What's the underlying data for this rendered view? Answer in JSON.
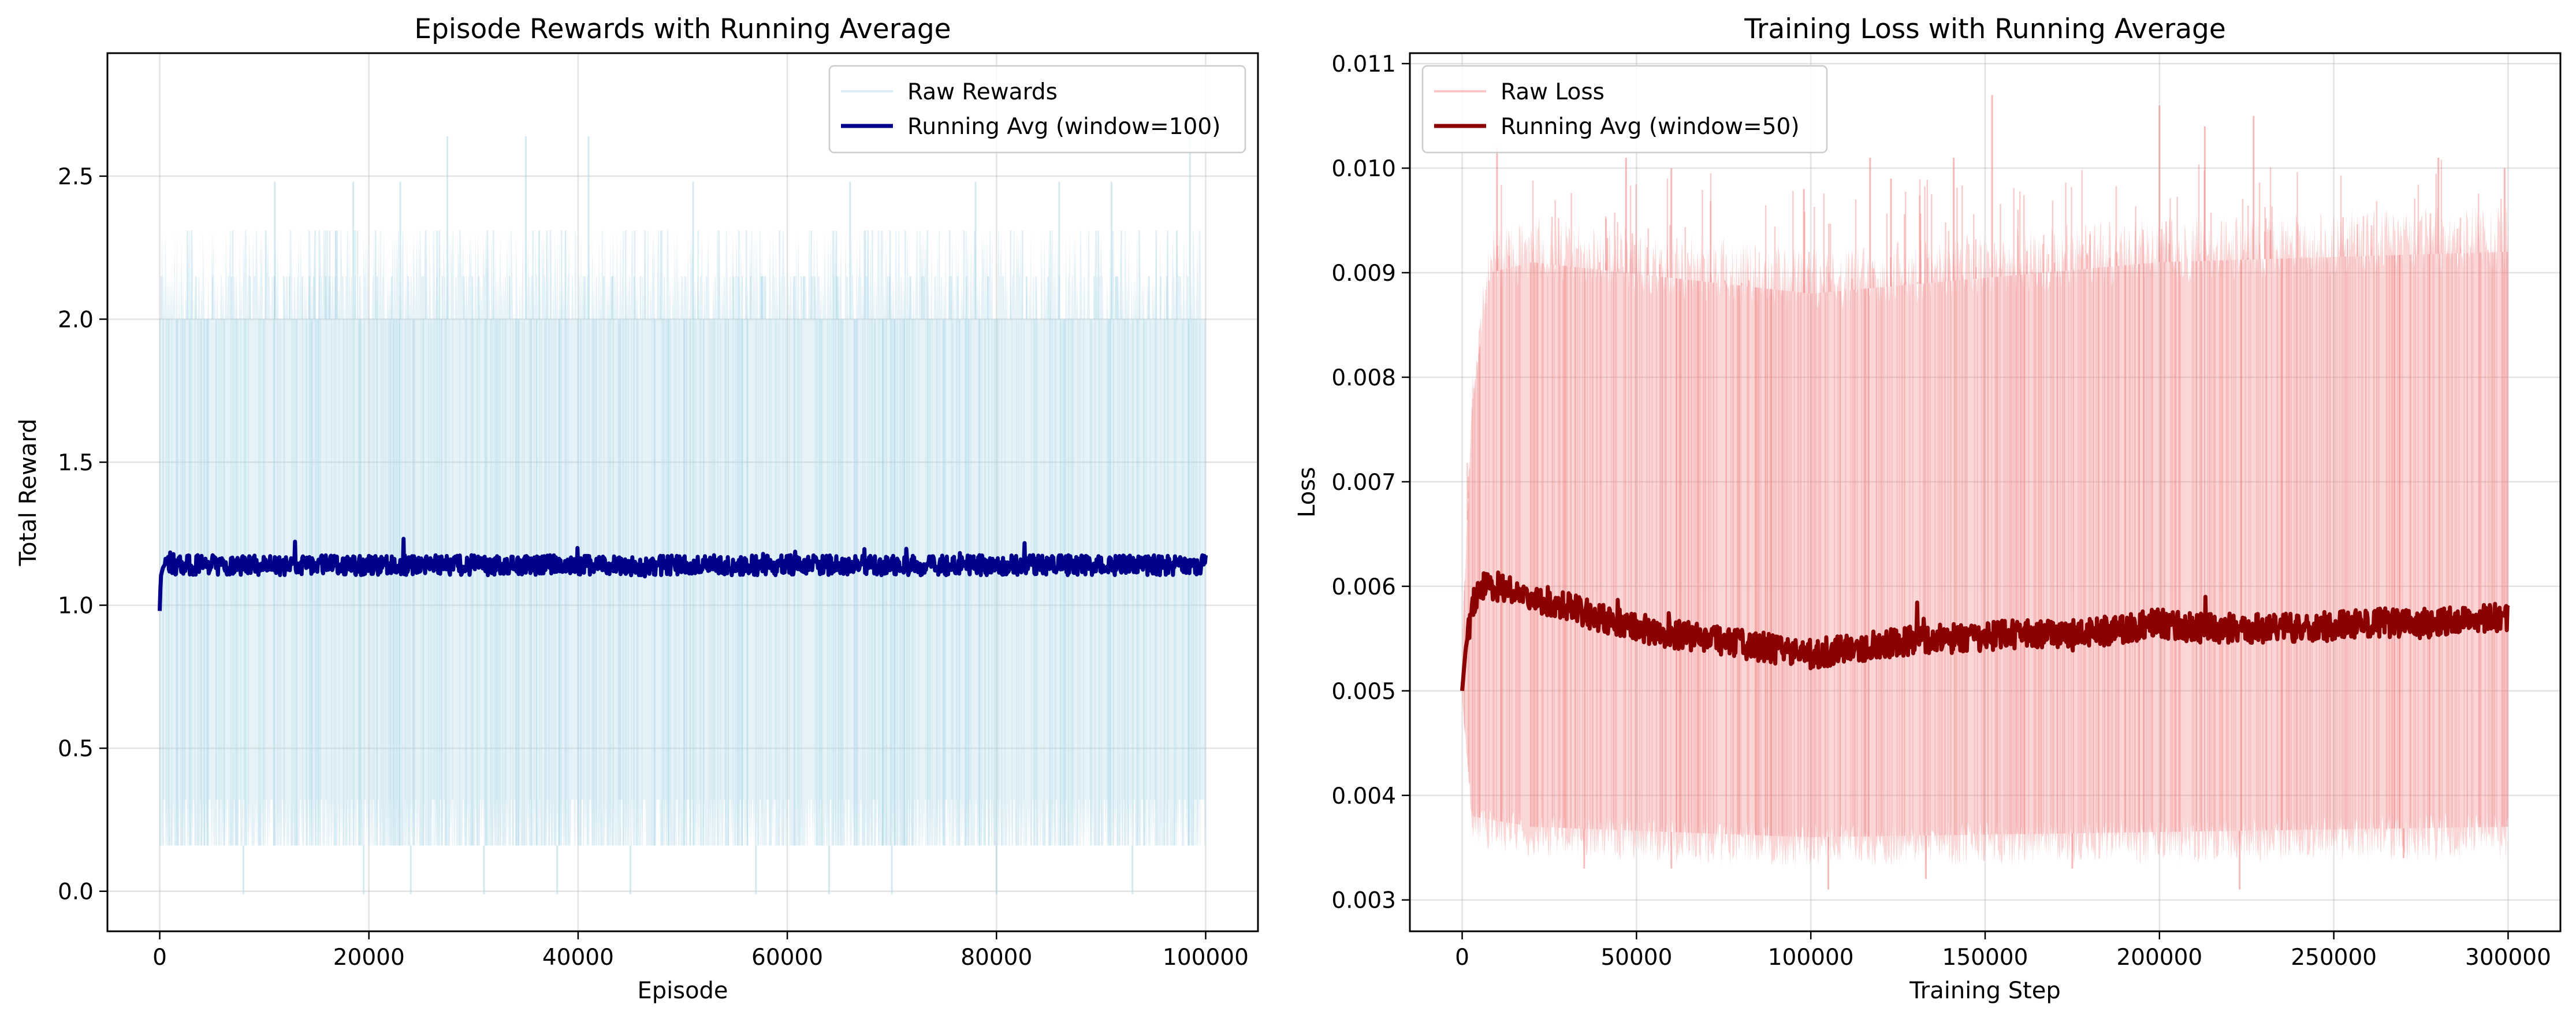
{
  "chart_data": [
    {
      "type": "line",
      "title": "Episode Rewards with Running Average",
      "xlabel": "Episode",
      "ylabel": "Total Reward",
      "xlim": [
        -5000,
        105000
      ],
      "ylim": [
        -0.14,
        2.93
      ],
      "xticks": [
        0,
        20000,
        40000,
        60000,
        80000,
        100000
      ],
      "xtick_labels": [
        "0",
        "20000",
        "40000",
        "60000",
        "80000",
        "100000"
      ],
      "yticks": [
        0.0,
        0.5,
        1.0,
        1.5,
        2.0,
        2.5
      ],
      "ytick_labels": [
        "0.0",
        "0.5",
        "1.0",
        "1.5",
        "2.0",
        "2.5"
      ],
      "grid": true,
      "legend": "top-right",
      "series": [
        {
          "name": "Raw Rewards",
          "color": "#add8e6",
          "style": "raw-band",
          "x": [
            0,
            100000
          ],
          "band_low": 0.16,
          "band_high": 2.0,
          "min": -0.01,
          "max": 2.64,
          "common_values": [
            0.16,
            0.32,
            2.0,
            2.15,
            2.31
          ],
          "spikes": [
            {
              "x": 11000,
              "y": 2.48
            },
            {
              "x": 18500,
              "y": 2.48
            },
            {
              "x": 23000,
              "y": 2.48
            },
            {
              "x": 27500,
              "y": 2.64
            },
            {
              "x": 35000,
              "y": 2.64
            },
            {
              "x": 41000,
              "y": 2.64
            },
            {
              "x": 51000,
              "y": 2.48
            },
            {
              "x": 66000,
              "y": 2.48
            },
            {
              "x": 78000,
              "y": 2.48
            },
            {
              "x": 86000,
              "y": 2.48
            },
            {
              "x": 91000,
              "y": 2.48
            },
            {
              "x": 98500,
              "y": 2.64
            },
            {
              "x": 8000,
              "y": -0.01
            },
            {
              "x": 19500,
              "y": -0.01
            },
            {
              "x": 24000,
              "y": -0.01
            },
            {
              "x": 31000,
              "y": -0.01
            },
            {
              "x": 38000,
              "y": -0.01
            },
            {
              "x": 45000,
              "y": -0.01
            },
            {
              "x": 57000,
              "y": -0.01
            },
            {
              "x": 64000,
              "y": -0.01
            },
            {
              "x": 70000,
              "y": -0.01
            },
            {
              "x": 80000,
              "y": -0.01
            },
            {
              "x": 93000,
              "y": -0.01
            }
          ]
        },
        {
          "name": "Running Avg (window=100)",
          "color": "#00008b",
          "style": "line",
          "x": [
            0,
            100,
            300,
            600,
            1000,
            1500,
            2000,
            5000,
            10000,
            15000,
            20000,
            25000,
            30000,
            35000,
            40000,
            45000,
            50000,
            55000,
            60000,
            65000,
            70000,
            75000,
            80000,
            85000,
            90000,
            95000,
            100000
          ],
          "y": [
            0.98,
            1.1,
            1.13,
            1.15,
            1.15,
            1.14,
            1.14,
            1.14,
            1.14,
            1.14,
            1.14,
            1.14,
            1.14,
            1.14,
            1.14,
            1.14,
            1.14,
            1.14,
            1.14,
            1.14,
            1.14,
            1.14,
            1.14,
            1.14,
            1.14,
            1.14,
            1.14
          ],
          "noise": 0.035,
          "min": 0.97,
          "max": 1.26
        }
      ]
    },
    {
      "type": "line",
      "title": "Training Loss with Running Average",
      "xlabel": "Training Step",
      "ylabel": "Loss",
      "xlim": [
        -15000,
        315000
      ],
      "ylim": [
        0.0027,
        0.0111
      ],
      "xticks": [
        0,
        50000,
        100000,
        150000,
        200000,
        250000,
        300000
      ],
      "xtick_labels": [
        "0",
        "50000",
        "100000",
        "150000",
        "200000",
        "250000",
        "300000"
      ],
      "yticks": [
        0.003,
        0.004,
        0.005,
        0.006,
        0.007,
        0.008,
        0.009,
        0.01,
        0.011
      ],
      "ytick_labels": [
        "0.003",
        "0.004",
        "0.005",
        "0.006",
        "0.007",
        "0.008",
        "0.009",
        "0.010",
        "0.011"
      ],
      "grid": true,
      "legend": "top-left",
      "series": [
        {
          "name": "Raw Loss",
          "color": "#f08080",
          "style": "raw-band",
          "x": [
            0,
            300000
          ],
          "band_low_pts": [
            [
              0,
              0.0049
            ],
            [
              3000,
              0.0038
            ],
            [
              20000,
              0.0037
            ],
            [
              100000,
              0.0036
            ],
            [
              300000,
              0.0037
            ]
          ],
          "band_high_pts": [
            [
              0,
              0.0055
            ],
            [
              3000,
              0.0078
            ],
            [
              8000,
              0.009
            ],
            [
              20000,
              0.0091
            ],
            [
              100000,
              0.0088
            ],
            [
              200000,
              0.0091
            ],
            [
              300000,
              0.0092
            ]
          ],
          "min": 0.0031,
          "max": 0.0107,
          "spikes": [
            {
              "x": 10000,
              "y": 0.0102
            },
            {
              "x": 47000,
              "y": 0.0101
            },
            {
              "x": 60000,
              "y": 0.01
            },
            {
              "x": 98000,
              "y": 0.0098
            },
            {
              "x": 117000,
              "y": 0.0101
            },
            {
              "x": 123000,
              "y": 0.0099
            },
            {
              "x": 141000,
              "y": 0.0101
            },
            {
              "x": 152000,
              "y": 0.0107
            },
            {
              "x": 200000,
              "y": 0.0106
            },
            {
              "x": 213000,
              "y": 0.0104
            },
            {
              "x": 227000,
              "y": 0.0105
            },
            {
              "x": 280000,
              "y": 0.0101
            },
            {
              "x": 299000,
              "y": 0.01
            },
            {
              "x": 35000,
              "y": 0.0033
            },
            {
              "x": 60000,
              "y": 0.0033
            },
            {
              "x": 105000,
              "y": 0.0031
            },
            {
              "x": 133000,
              "y": 0.0032
            },
            {
              "x": 175000,
              "y": 0.0033
            },
            {
              "x": 223000,
              "y": 0.0031
            },
            {
              "x": 270000,
              "y": 0.0034
            }
          ]
        },
        {
          "name": "Running Avg (window=50)",
          "color": "#8b0000",
          "style": "line",
          "x": [
            0,
            1000,
            3000,
            5000,
            10000,
            20000,
            30000,
            40000,
            50000,
            60000,
            70000,
            80000,
            90000,
            100000,
            110000,
            120000,
            130000,
            140000,
            150000,
            160000,
            170000,
            180000,
            190000,
            200000,
            210000,
            220000,
            230000,
            240000,
            250000,
            260000,
            270000,
            280000,
            290000,
            300000
          ],
          "y": [
            0.005,
            0.0054,
            0.0058,
            0.006,
            0.006,
            0.0059,
            0.0058,
            0.0057,
            0.0056,
            0.00555,
            0.0055,
            0.00545,
            0.0054,
            0.00535,
            0.0054,
            0.00545,
            0.00548,
            0.0055,
            0.00552,
            0.00555,
            0.00555,
            0.00555,
            0.0056,
            0.00565,
            0.0056,
            0.0056,
            0.0056,
            0.0056,
            0.00562,
            0.00565,
            0.00565,
            0.00565,
            0.00568,
            0.0057
          ],
          "noise": 0.00014,
          "min": 0.0049,
          "max": 0.0065
        }
      ]
    }
  ]
}
